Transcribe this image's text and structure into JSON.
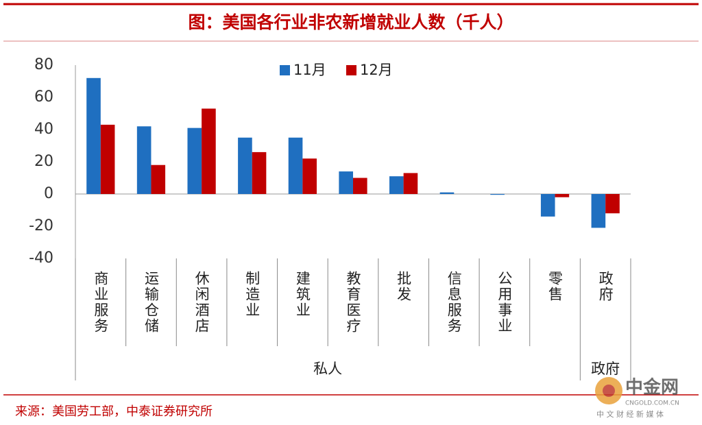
{
  "chart_data": {
    "type": "bar",
    "title": "图：美国各行业非农新增就业人数（千人）",
    "categories": [
      "商业服务",
      "运输仓储",
      "休闲酒店",
      "制造业",
      "建筑业",
      "教育医疗",
      "批发",
      "信息服务",
      "公用事业",
      "零售",
      "政府"
    ],
    "groups": [
      {
        "label": "私人",
        "count": 10
      },
      {
        "label": "政府",
        "count": 1
      }
    ],
    "series": [
      {
        "name": "11月",
        "color": "#1f6fc0",
        "values": [
          72,
          42,
          41,
          35,
          35,
          14,
          11,
          1,
          -0.5,
          -14,
          -21
        ]
      },
      {
        "name": "12月",
        "color": "#c00000",
        "values": [
          43,
          18,
          53,
          26,
          22,
          10,
          13,
          0,
          0,
          -2,
          -12
        ]
      }
    ],
    "ylim": [
      -40,
      80
    ],
    "yticks": [
      -40,
      -20,
      0,
      20,
      40,
      60,
      80
    ],
    "grid": false,
    "legend": "top",
    "source": "来源：美国劳工部，中泰证券研究所"
  },
  "watermark": {
    "name": "中金网",
    "site": "CNGOLD.COM.CN",
    "slogan": "中 文 财 经 新 媒 体"
  }
}
